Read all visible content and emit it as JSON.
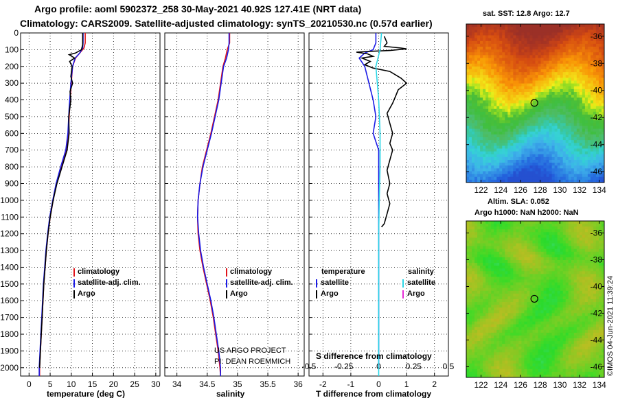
{
  "title": {
    "line1": "Argo profile: aoml 5902372_258 30-May-2021 40.92S 127.41E (NRT data)",
    "line2": "Climatology: CARS2009. Satellite-adjusted climatology: synTS_20210530.nc (0.57d earlier)"
  },
  "colors": {
    "climatology": "#e0141b",
    "satellite": "#1a1ae6",
    "argo": "#000000",
    "argo_salinity": "#e62bd6",
    "satellite_salinity": "#2ad6e6"
  },
  "chart_data": [
    {
      "id": "temperature",
      "type": "line",
      "xlabel": "temperature (deg C)",
      "ylabel": "",
      "xlim": [
        -2,
        31
      ],
      "ylim": [
        2050,
        0
      ],
      "xticks": [
        0,
        5,
        10,
        15,
        20,
        25,
        30
      ],
      "yticks": [
        0,
        100,
        200,
        300,
        400,
        500,
        600,
        700,
        800,
        900,
        1000,
        1100,
        1200,
        1300,
        1400,
        1500,
        1600,
        1700,
        1800,
        1900,
        2000
      ],
      "legend": {
        "position": "lower-right",
        "entries": [
          "climatology",
          "satellite-adj. clim.",
          "Argo"
        ]
      },
      "series": [
        {
          "name": "climatology",
          "color_key": "climatology",
          "points": [
            [
              13.3,
              0
            ],
            [
              13.3,
              60
            ],
            [
              13.0,
              90
            ],
            [
              12.0,
              120
            ],
            [
              11.0,
              150
            ],
            [
              10.3,
              200
            ],
            [
              10.0,
              300
            ],
            [
              9.6,
              450
            ],
            [
              9.3,
              600
            ],
            [
              8.8,
              700
            ],
            [
              7.6,
              800
            ],
            [
              6.5,
              900
            ],
            [
              5.7,
              1000
            ],
            [
              5.0,
              1100
            ],
            [
              4.5,
              1200
            ],
            [
              4.1,
              1300
            ],
            [
              3.8,
              1400
            ],
            [
              3.5,
              1500
            ],
            [
              3.3,
              1600
            ],
            [
              3.1,
              1700
            ],
            [
              2.9,
              1800
            ],
            [
              2.7,
              1900
            ],
            [
              2.5,
              2000
            ],
            [
              2.5,
              2050
            ]
          ]
        },
        {
          "name": "satellite-adj. clim.",
          "color_key": "satellite",
          "points": [
            [
              12.8,
              0
            ],
            [
              12.8,
              60
            ],
            [
              12.7,
              90
            ],
            [
              12.0,
              120
            ],
            [
              10.9,
              150
            ],
            [
              10.3,
              200
            ],
            [
              9.9,
              300
            ],
            [
              9.5,
              450
            ],
            [
              9.2,
              600
            ],
            [
              8.7,
              700
            ],
            [
              7.5,
              800
            ],
            [
              6.4,
              900
            ],
            [
              5.6,
              1000
            ],
            [
              4.9,
              1100
            ],
            [
              4.4,
              1200
            ],
            [
              4.0,
              1300
            ],
            [
              3.7,
              1400
            ],
            [
              3.4,
              1500
            ],
            [
              3.2,
              1600
            ],
            [
              3.0,
              1700
            ],
            [
              2.8,
              1800
            ],
            [
              2.6,
              1900
            ],
            [
              2.4,
              2000
            ],
            [
              2.4,
              2050
            ]
          ]
        },
        {
          "name": "Argo",
          "color_key": "argo",
          "points": [
            [
              12.7,
              0
            ],
            [
              12.7,
              70
            ],
            [
              12.4,
              100
            ],
            [
              11.0,
              120
            ],
            [
              9.5,
              130
            ],
            [
              10.8,
              150
            ],
            [
              9.6,
              170
            ],
            [
              10.2,
              200
            ],
            [
              9.9,
              260
            ],
            [
              10.3,
              300
            ],
            [
              9.7,
              350
            ],
            [
              9.9,
              400
            ],
            [
              9.4,
              500
            ],
            [
              9.5,
              600
            ],
            [
              9.0,
              700
            ],
            [
              7.8,
              800
            ],
            [
              6.6,
              900
            ],
            [
              5.7,
              1000
            ],
            [
              5.0,
              1100
            ],
            [
              4.5,
              1200
            ],
            [
              4.1,
              1300
            ],
            [
              3.8,
              1400
            ],
            [
              3.5,
              1500
            ],
            [
              3.3,
              1600
            ],
            [
              3.1,
              1700
            ],
            [
              2.9,
              1800
            ],
            [
              2.7,
              1900
            ],
            [
              2.5,
              2000
            ]
          ]
        }
      ]
    },
    {
      "id": "salinity",
      "type": "line",
      "xlabel": "salinity",
      "xlim": [
        33.8,
        36.1
      ],
      "ylim": [
        2050,
        0
      ],
      "xticks": [
        34,
        34.5,
        35,
        35.5,
        36
      ],
      "xticklabels": [
        "34",
        "34.5",
        "35",
        "35.5",
        "36"
      ],
      "legend": {
        "position": "lower-right",
        "entries": [
          "climatology",
          "satellite-adj. clim.",
          "Argo"
        ]
      },
      "series": [
        {
          "name": "climatology",
          "color_key": "climatology",
          "points": [
            [
              34.87,
              0
            ],
            [
              34.87,
              60
            ],
            [
              34.83,
              100
            ],
            [
              34.8,
              150
            ],
            [
              34.76,
              200
            ],
            [
              34.72,
              300
            ],
            [
              34.68,
              400
            ],
            [
              34.62,
              500
            ],
            [
              34.56,
              600
            ],
            [
              34.49,
              700
            ],
            [
              34.42,
              800
            ],
            [
              34.38,
              900
            ],
            [
              34.35,
              1000
            ],
            [
              34.34,
              1100
            ],
            [
              34.35,
              1200
            ],
            [
              34.38,
              1300
            ],
            [
              34.43,
              1400
            ],
            [
              34.49,
              1500
            ],
            [
              34.55,
              1600
            ],
            [
              34.6,
              1700
            ],
            [
              34.64,
              1800
            ],
            [
              34.68,
              1900
            ],
            [
              34.71,
              2000
            ],
            [
              34.72,
              2050
            ]
          ]
        },
        {
          "name": "satellite-adj. clim.",
          "color_key": "satellite",
          "points": [
            [
              34.86,
              0
            ],
            [
              34.86,
              60
            ],
            [
              34.85,
              100
            ],
            [
              34.82,
              150
            ],
            [
              34.77,
              200
            ],
            [
              34.73,
              300
            ],
            [
              34.69,
              400
            ],
            [
              34.63,
              500
            ],
            [
              34.57,
              600
            ],
            [
              34.5,
              700
            ],
            [
              34.43,
              800
            ],
            [
              34.38,
              900
            ],
            [
              34.35,
              1000
            ],
            [
              34.34,
              1100
            ],
            [
              34.36,
              1200
            ],
            [
              34.39,
              1300
            ],
            [
              34.44,
              1400
            ],
            [
              34.5,
              1500
            ],
            [
              34.56,
              1600
            ],
            [
              34.61,
              1700
            ],
            [
              34.65,
              1800
            ],
            [
              34.69,
              1900
            ],
            [
              34.72,
              2000
            ],
            [
              34.72,
              2050
            ]
          ]
        }
      ]
    },
    {
      "id": "difference",
      "type": "line",
      "xlabel": "T difference from climatology",
      "secondary_xlabel": "S difference from climatology",
      "xlim": [
        -2.5,
        2.5
      ],
      "ylim": [
        2050,
        0
      ],
      "xticks": [
        -2,
        -1,
        0,
        1,
        2
      ],
      "xticklabels": [
        "-2",
        "-1",
        "0",
        "1",
        "2"
      ],
      "secondary_xticks": [
        -0.5,
        -0.25,
        0,
        0.25,
        0.5
      ],
      "secondary_xticklabels": [
        "-0.5",
        "-0.25",
        "0",
        "0.25",
        "0.5"
      ],
      "legend": {
        "position": "lower-center",
        "group_temperature": "temperature",
        "group_salinity": "salinity",
        "entries": [
          "satellite",
          "Argo",
          "satellite",
          "Argo"
        ]
      },
      "series": [
        {
          "name": "temperature satellite",
          "color_key": "satellite",
          "points": [
            [
              -0.1,
              0
            ],
            [
              -0.1,
              60
            ],
            [
              -0.2,
              100
            ],
            [
              -0.5,
              120
            ],
            [
              -0.7,
              150
            ],
            [
              -0.5,
              200
            ],
            [
              -0.35,
              300
            ],
            [
              -0.2,
              400
            ],
            [
              -0.1,
              500
            ],
            [
              -0.2,
              600
            ],
            [
              -0.1,
              650
            ],
            [
              0,
              700
            ],
            [
              0,
              1000
            ],
            [
              0,
              1500
            ],
            [
              0,
              2000
            ]
          ]
        },
        {
          "name": "temperature Argo",
          "color_key": "argo",
          "points": [
            [
              0.2,
              20
            ],
            [
              0.3,
              60
            ],
            [
              0.2,
              80
            ],
            [
              0.8,
              90
            ],
            [
              1.0,
              95
            ],
            [
              0.4,
              105
            ],
            [
              -0.3,
              110
            ],
            [
              -0.8,
              115
            ],
            [
              -0.4,
              125
            ],
            [
              -0.2,
              140
            ],
            [
              -0.6,
              150
            ],
            [
              -0.3,
              170
            ],
            [
              -0.5,
              190
            ],
            [
              -0.2,
              210
            ],
            [
              0.4,
              230
            ],
            [
              0.8,
              270
            ],
            [
              1.0,
              300
            ],
            [
              0.7,
              340
            ],
            [
              0.6,
              380
            ],
            [
              0.5,
              420
            ],
            [
              0.3,
              480
            ],
            [
              0.4,
              540
            ],
            [
              0.5,
              600
            ],
            [
              0.4,
              660
            ],
            [
              0.5,
              700
            ],
            [
              0.4,
              760
            ],
            [
              0.3,
              820
            ],
            [
              0.4,
              900
            ],
            [
              0.3,
              960
            ],
            [
              0.4,
              1020
            ],
            [
              0.3,
              1080
            ],
            [
              0.2,
              1140
            ],
            [
              0.1,
              1160
            ]
          ]
        },
        {
          "name": "salinity satellite",
          "color_key": "satellite_salinity",
          "points": [
            [
              0.1,
              0
            ],
            [
              0.05,
              100
            ],
            [
              -0.1,
              200
            ],
            [
              -0.05,
              300
            ],
            [
              0,
              400
            ],
            [
              0.05,
              600
            ],
            [
              0.05,
              800
            ],
            [
              0.02,
              1000
            ],
            [
              0,
              1200
            ],
            [
              0,
              1500
            ],
            [
              0,
              1800
            ],
            [
              0,
              2000
            ],
            [
              0,
              2050
            ]
          ]
        }
      ]
    },
    {
      "id": "sst-map",
      "type": "heatmap",
      "title": "sat. SST: 12.8 Argo: 12.7",
      "xticks": [
        122,
        124,
        126,
        128,
        130,
        132,
        134
      ],
      "yticks": [
        -36,
        -38,
        -40,
        -42,
        -44,
        -46
      ],
      "xlim": [
        120.5,
        134.5
      ],
      "ylim": [
        -46.8,
        -35.1
      ],
      "argo_position": [
        127.41,
        -40.92
      ]
    },
    {
      "id": "sla-map",
      "type": "heatmap",
      "title": "Altim. SLA: 0.052",
      "subtitle": "Argo h1000: NaN h2000: NaN",
      "xticks": [
        122,
        124,
        126,
        128,
        130,
        132,
        134
      ],
      "yticks": [
        -36,
        -38,
        -40,
        -42,
        -44,
        -46
      ],
      "xlim": [
        120.5,
        134.5
      ],
      "ylim": [
        -46.8,
        -35.1
      ],
      "argo_position": [
        127.41,
        -40.92
      ]
    }
  ],
  "legend_labels": {
    "climatology": "climatology",
    "satellite_adj": "satellite-adj. clim.",
    "argo": "Argo",
    "temperature": "temperature",
    "salinity": "salinity",
    "satellite": "satellite"
  },
  "credits": {
    "line1": "US ARGO PROJECT",
    "line2": "PI: DEAN ROEMMICH",
    "imos": "©IMOS 04-Jun-2021 11:39:24"
  }
}
